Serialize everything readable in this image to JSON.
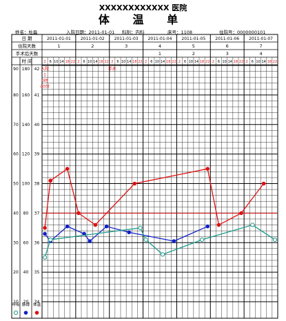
{
  "header": {
    "hospital": "XXXXXXXXXXXX 医院",
    "form_title": "体 温 单"
  },
  "patient": {
    "name_label": "姓名：",
    "name": "杜磊",
    "admit_label": "入院日期：",
    "admit_date": "2011-01-01",
    "dept_label": "科别：",
    "dept": "内科",
    "bed_label": "床号：",
    "bed": "1108",
    "id_label": "住院号：",
    "id": "0000000101"
  },
  "rows": {
    "date_label": "日 期",
    "inpatient_days_label": "住院天数",
    "postop_days_label": "手术后天数",
    "time_label": "时 间"
  },
  "days": [
    {
      "date": "2011-01-01",
      "inpatient_day": "1",
      "postop_day": ""
    },
    {
      "date": "2011-01-02",
      "inpatient_day": "2",
      "postop_day": ""
    },
    {
      "date": "2011-01-03",
      "inpatient_day": "3",
      "postop_day": ""
    },
    {
      "date": "2011-01-04",
      "inpatient_day": "4",
      "postop_day": "1"
    },
    {
      "date": "2011-01-05",
      "inpatient_day": "5",
      "postop_day": "2"
    },
    {
      "date": "2011-01-06",
      "inpatient_day": "6",
      "postop_day": "3"
    },
    {
      "date": "2011-01-07",
      "inpatient_day": "7",
      "postop_day": "4"
    }
  ],
  "time_slots": [
    "2",
    "6",
    "10",
    "14",
    "18",
    "22"
  ],
  "annotations": [
    {
      "day_index": 0,
      "slot_index": 0,
      "text": "入院|1|0时|40分"
    },
    {
      "day_index": 2,
      "slot_index": 0,
      "text": "手术"
    }
  ],
  "legend": {
    "resp_label": "呼吸",
    "pulse_label": "脉搏",
    "temp_label": "体温"
  },
  "colors": {
    "temperature": "#e01010",
    "pulse": "#1020c8",
    "respiration": "#1a9a8a",
    "reference_line": "#e01010",
    "grid": "#000000"
  },
  "chart_data": {
    "type": "line",
    "title": "体温单",
    "x_unit": "time slot (6 per day, every 4 hours)",
    "axes": {
      "respiration": {
        "label": "呼吸",
        "ticks": [
          90,
          80,
          70,
          60,
          50,
          40,
          30,
          20,
          10
        ]
      },
      "pulse": {
        "label": "脉搏",
        "ticks": [
          180,
          160,
          140,
          120,
          100,
          80,
          60,
          40,
          20
        ]
      },
      "temperature": {
        "label": "体温",
        "ticks": [
          42,
          41,
          40,
          39,
          38,
          37,
          36,
          35,
          34
        ],
        "range": [
          34,
          42
        ]
      }
    },
    "reference_lines": [
      {
        "axis": "temperature",
        "value": 37
      }
    ],
    "series": [
      {
        "name": "体温",
        "axis": "temperature",
        "marker": "filled-circle",
        "points": [
          {
            "day": "2011-01-01",
            "slot": "2",
            "value": 36.5
          },
          {
            "day": "2011-01-01",
            "slot": "6",
            "value": 38.1
          },
          {
            "day": "2011-01-01",
            "slot": "18",
            "value": 38.5
          },
          {
            "day": "2011-01-02",
            "slot": "2",
            "value": 37.0
          },
          {
            "day": "2011-01-02",
            "slot": "14",
            "value": 36.6
          },
          {
            "day": "2011-01-03",
            "slot": "18",
            "value": 38.0
          },
          {
            "day": "2011-01-05",
            "slot": "22",
            "value": 38.5
          },
          {
            "day": "2011-01-06",
            "slot": "6",
            "value": 36.6
          },
          {
            "day": "2011-01-06",
            "slot": "22",
            "value": 37.0
          },
          {
            "day": "2011-01-07",
            "slot": "14",
            "value": 38.0
          }
        ]
      },
      {
        "name": "脉搏",
        "axis": "pulse",
        "marker": "filled-circle",
        "points": [
          {
            "day": "2011-01-01",
            "slot": "2",
            "value": 66
          },
          {
            "day": "2011-01-01",
            "slot": "6",
            "value": 61
          },
          {
            "day": "2011-01-01",
            "slot": "18",
            "value": 71
          },
          {
            "day": "2011-01-02",
            "slot": "6",
            "value": 66
          },
          {
            "day": "2011-01-02",
            "slot": "10",
            "value": 61
          },
          {
            "day": "2011-01-02",
            "slot": "22",
            "value": 71
          },
          {
            "day": "2011-01-03",
            "slot": "14",
            "value": 67
          },
          {
            "day": "2011-01-04",
            "slot": "22",
            "value": 61
          },
          {
            "day": "2011-01-05",
            "slot": "22",
            "value": 71
          }
        ]
      },
      {
        "name": "呼吸",
        "axis": "respiration",
        "marker": "open-circle",
        "points": [
          {
            "day": "2011-01-01",
            "slot": "2",
            "value": 25
          },
          {
            "day": "2011-01-01",
            "slot": "6",
            "value": 31
          },
          {
            "day": "2011-01-03",
            "slot": "22",
            "value": 35
          },
          {
            "day": "2011-01-04",
            "slot": "2",
            "value": 31
          },
          {
            "day": "2011-01-04",
            "slot": "14",
            "value": 26
          },
          {
            "day": "2011-01-05",
            "slot": "18",
            "value": 31
          },
          {
            "day": "2011-01-07",
            "slot": "6",
            "value": 36
          },
          {
            "day": "2011-01-07",
            "slot": "22",
            "value": 31
          }
        ]
      }
    ]
  }
}
